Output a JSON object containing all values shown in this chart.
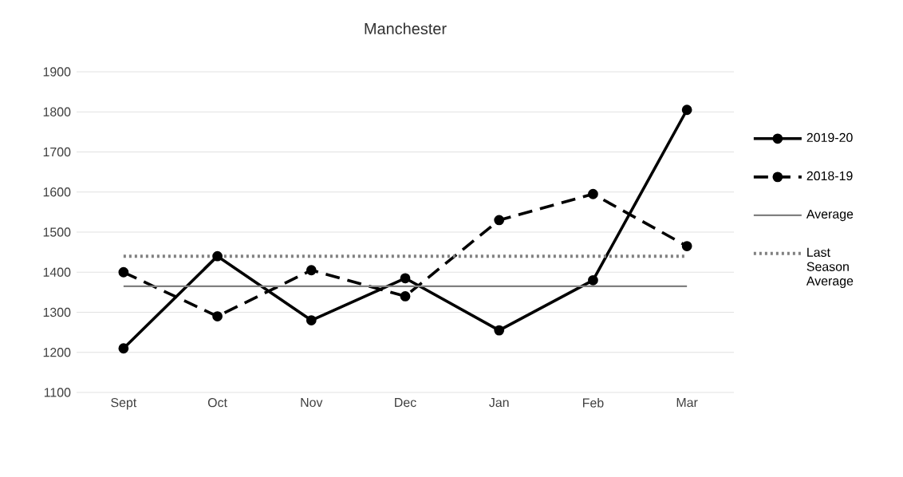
{
  "chart_data": {
    "type": "line",
    "title": "Manchester",
    "categories": [
      "Sept",
      "Oct",
      "Nov",
      "Dec",
      "Jan",
      "Feb",
      "Mar"
    ],
    "series": [
      {
        "name": "2019-20",
        "color": "#000000",
        "marker": "circle",
        "line_style": "solid",
        "values": [
          1210,
          1440,
          1280,
          1385,
          1255,
          1380,
          1805
        ]
      },
      {
        "name": "2018-19",
        "color": "#000000",
        "marker": "circle",
        "line_style": "dashed",
        "values": [
          1400,
          1290,
          1405,
          1340,
          1530,
          1595,
          1465
        ]
      },
      {
        "name": "Average",
        "color": "#808080",
        "marker": "none",
        "line_style": "solid",
        "values": [
          1365,
          1365,
          1365,
          1365,
          1365,
          1365,
          1365
        ]
      },
      {
        "name": "Last Season Average",
        "color": "#808080",
        "marker": "none",
        "line_style": "dotted",
        "values": [
          1440,
          1440,
          1440,
          1440,
          1440,
          1440,
          1440
        ]
      }
    ],
    "ylim": [
      1100,
      1900
    ],
    "yticks": [
      1100,
      1200,
      1300,
      1400,
      1500,
      1600,
      1700,
      1800,
      1900
    ],
    "grid": "y",
    "legend": "right"
  }
}
